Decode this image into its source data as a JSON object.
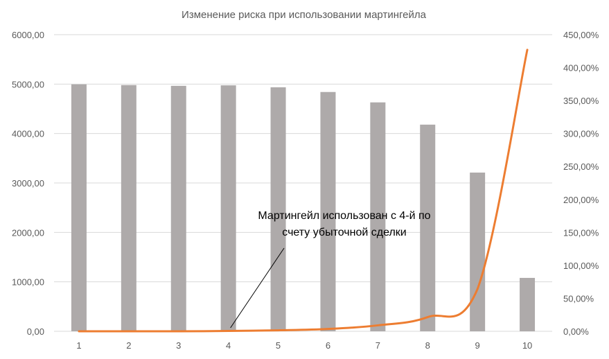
{
  "chart_data": {
    "type": "bar",
    "title": "Изменение риска при использовании мартингейла",
    "categories": [
      "1",
      "2",
      "3",
      "4",
      "5",
      "6",
      "7",
      "8",
      "9",
      "10"
    ],
    "series": [
      {
        "axis": "left",
        "type": "bar",
        "color": "#aeaaaa",
        "values": [
          4995,
          4980,
          4965,
          4975,
          4935,
          4840,
          4630,
          4180,
          3210,
          1080
        ]
      },
      {
        "axis": "right",
        "type": "line",
        "color": "#ed7d31",
        "values": [
          0.0,
          0.0,
          0.0,
          0.5,
          1.5,
          3.5,
          9.0,
          21.5,
          64.0,
          427.0
        ]
      }
    ],
    "y_left": {
      "min": 0,
      "max": 6000,
      "ticks": [
        "0,00",
        "1000,00",
        "2000,00",
        "3000,00",
        "4000,00",
        "5000,00",
        "6000,00"
      ]
    },
    "y_right": {
      "min": 0,
      "max": 450,
      "ticks": [
        "0,00%",
        "50,00%",
        "100,00%",
        "150,00%",
        "200,00%",
        "250,00%",
        "300,00%",
        "350,00%",
        "400,00%",
        "450,00%"
      ]
    },
    "grid": true,
    "legend": "none",
    "annotation": {
      "lines": [
        "Мартингейл использован с 4-й по",
        "счету убыточной сделки"
      ],
      "points_to_category": "4"
    }
  }
}
